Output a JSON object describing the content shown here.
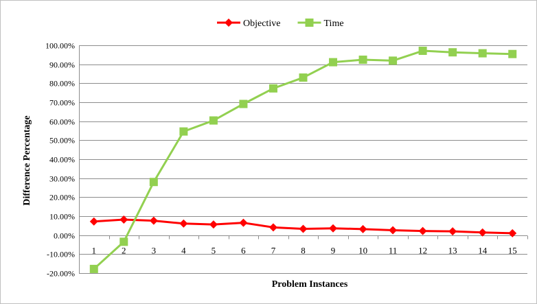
{
  "chart_data": {
    "type": "line",
    "title": "",
    "xlabel": "Problem Instances",
    "ylabel": "Difference Percentage",
    "x": [
      1,
      2,
      3,
      4,
      5,
      6,
      7,
      8,
      9,
      10,
      11,
      12,
      13,
      14,
      15
    ],
    "x_tick_labels": [
      "1",
      "2",
      "3",
      "4",
      "5",
      "6",
      "7",
      "8",
      "9",
      "10",
      "11",
      "12",
      "13",
      "14",
      "15"
    ],
    "ylim": [
      -20,
      100
    ],
    "y_ticks": [
      -20,
      -10,
      0,
      10,
      20,
      30,
      40,
      50,
      60,
      70,
      80,
      90,
      100
    ],
    "y_tick_labels": [
      "-20.00%",
      "-10.00%",
      "0.00%",
      "10.00%",
      "20.00%",
      "30.00%",
      "40.00%",
      "50.00%",
      "60.00%",
      "70.00%",
      "80.00%",
      "90.00%",
      "100.00%"
    ],
    "grid": true,
    "legend_position": "top",
    "series": [
      {
        "name": "Objective",
        "color": "#ff0000",
        "marker": "diamond",
        "values": [
          7.2,
          8.2,
          7.6,
          6.1,
          5.6,
          6.5,
          4.1,
          3.3,
          3.6,
          3.2,
          2.6,
          2.2,
          2.0,
          1.4,
          1.0
        ]
      },
      {
        "name": "Time",
        "color": "#92d050",
        "marker": "square",
        "values": [
          -17.8,
          -3.5,
          28.0,
          54.6,
          60.4,
          69.1,
          77.3,
          83.0,
          91.1,
          92.4,
          91.9,
          97.1,
          96.3,
          95.8,
          95.4
        ]
      }
    ]
  }
}
